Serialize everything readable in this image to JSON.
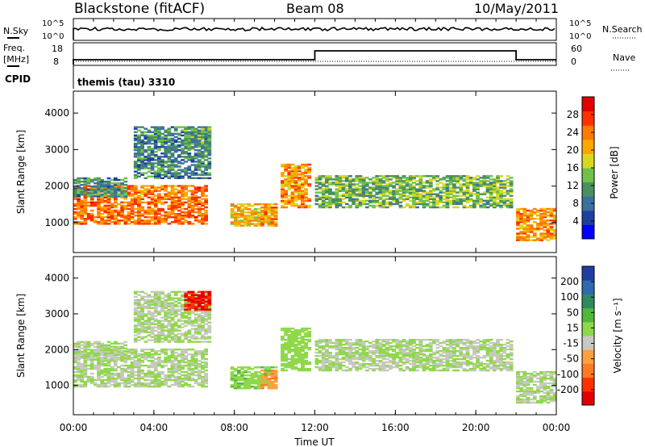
{
  "header": {
    "station": "Blackstone (fitACF)",
    "beam": "Beam 08",
    "date": "10/May/2011"
  },
  "top_panels": {
    "nsky_label": "N.Sky",
    "nsearch_label": "N.Search",
    "nsky_ticks": [
      "10^5",
      "10^0"
    ],
    "nsearch_ticks": [
      "10^5",
      "10^0"
    ],
    "freq_label": "Freq.",
    "freq_unit": "[MHz]",
    "freq_ticks": [
      "18",
      "8"
    ],
    "nave_label": "Nave",
    "nave_ticks": [
      "60",
      "0"
    ],
    "cpid_label": "CPID",
    "cpid_text": "themis (tau) 3310"
  },
  "power_panel": {
    "ylabel": "Slant Range [km]",
    "yticks": [
      "4000",
      "3000",
      "2000",
      "1000"
    ],
    "colorbar_label": "Power [dB]",
    "colorbar_ticks": [
      "28",
      "24",
      "20",
      "16",
      "12",
      "8",
      "4"
    ],
    "colors": [
      "#0000ff",
      "#1f3f9f",
      "#3b6fa0",
      "#4a8f60",
      "#6fc24a",
      "#d8d820",
      "#ffa600",
      "#ff7a00",
      "#ff3000",
      "#e00000"
    ]
  },
  "velocity_panel": {
    "ylabel": "Slant Range [km]",
    "yticks": [
      "4000",
      "3000",
      "2000",
      "1000"
    ],
    "colorbar_label": "Velocity [m s⁻¹]",
    "colorbar_ticks": [
      "200",
      "100",
      "50",
      "15",
      "-15",
      "-50",
      "-100",
      "-200"
    ],
    "colors": [
      "#1f3fa0",
      "#2e6ab0",
      "#2f8a60",
      "#4fb83a",
      "#8fd84a",
      "#c8c8c0",
      "#ffa040",
      "#ff7a20",
      "#ff3000",
      "#e00000"
    ]
  },
  "xaxis": {
    "label": "Time UT",
    "ticks": [
      "00:00",
      "04:00",
      "08:00",
      "12:00",
      "16:00",
      "20:00",
      "00:00"
    ]
  },
  "chart_data": {
    "type": "heatmap",
    "x_range_hours": [
      0,
      24
    ],
    "y_range_km": [
      180,
      4600
    ],
    "power_scale": [
      0,
      32
    ],
    "velocity_scale": [
      -250,
      250
    ],
    "echo_regions": [
      {
        "t_start": 0.0,
        "t_end": 6.6,
        "range_start_km": 950,
        "range_end_km": 2000,
        "power_db": 24,
        "velocity": 0
      },
      {
        "t_start": 0.0,
        "t_end": 2.5,
        "range_start_km": 1700,
        "range_end_km": 2200,
        "power_db": 10,
        "velocity": 0
      },
      {
        "t_start": 3.0,
        "t_end": 6.8,
        "range_start_km": 2200,
        "range_end_km": 3600,
        "power_db": 10,
        "velocity": 0
      },
      {
        "t_start": 5.5,
        "t_end": 6.8,
        "range_start_km": 3100,
        "range_end_km": 3600,
        "power_db": 12,
        "velocity": -200
      },
      {
        "t_start": 7.8,
        "t_end": 10.0,
        "range_start_km": 900,
        "range_end_km": 1500,
        "power_db": 20,
        "velocity": 40
      },
      {
        "t_start": 9.3,
        "t_end": 10.0,
        "range_start_km": 900,
        "range_end_km": 1400,
        "power_db": 22,
        "velocity": -90
      },
      {
        "t_start": 10.3,
        "t_end": 11.7,
        "range_start_km": 1400,
        "range_end_km": 2600,
        "power_db": 22,
        "velocity": 30
      },
      {
        "t_start": 12.0,
        "t_end": 21.7,
        "range_start_km": 1400,
        "range_end_km": 2300,
        "power_db": 14,
        "velocity": 0
      },
      {
        "t_start": 22.0,
        "t_end": 24.0,
        "range_start_km": 500,
        "range_end_km": 1400,
        "power_db": 22,
        "velocity": 0
      }
    ],
    "cpid_change_hour": 12.0,
    "cpid_end_hour": 22.0
  }
}
